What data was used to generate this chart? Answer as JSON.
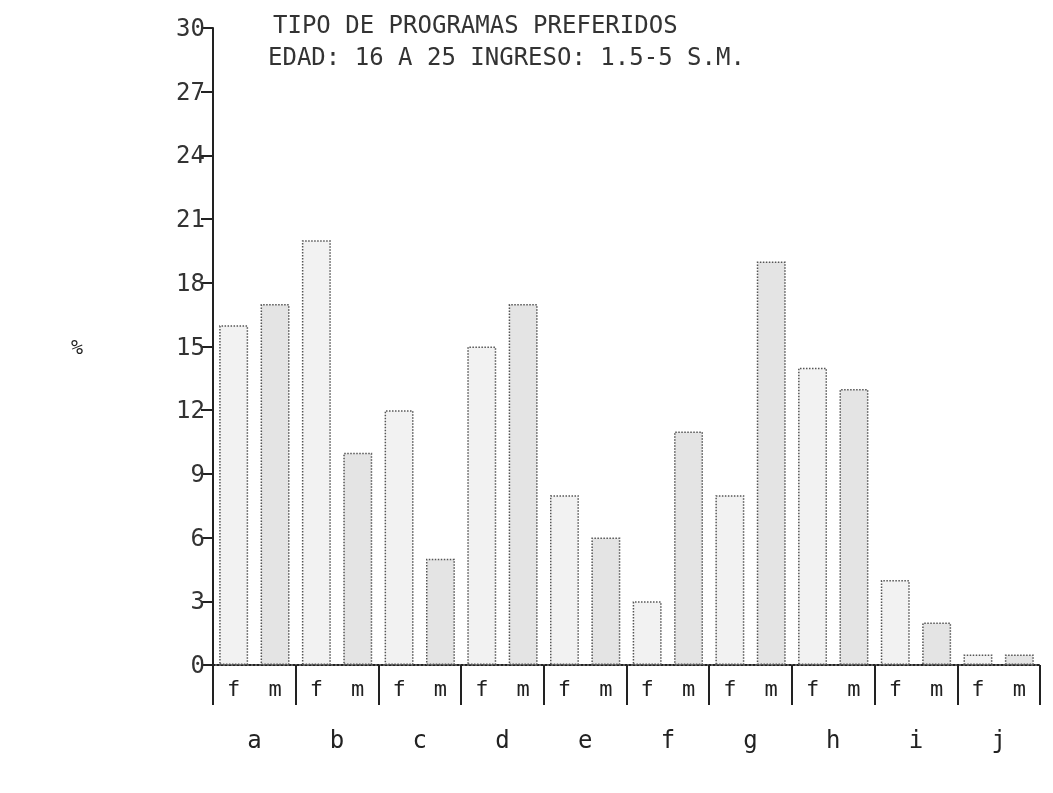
{
  "chart_data": {
    "type": "bar",
    "title": "TIPO DE PROGRAMAS PREFERIDOS",
    "subtitle": "EDAD: 16 A 25 INGRESO: 1.5-5 S.M.",
    "ylabel": "%",
    "categories": [
      "a",
      "b",
      "c",
      "d",
      "e",
      "f",
      "g",
      "h",
      "i",
      "j"
    ],
    "series": [
      {
        "name": "f",
        "color": "#f2f2f2",
        "values": [
          16,
          20,
          12,
          15,
          8,
          3,
          8,
          14,
          4,
          0.5
        ]
      },
      {
        "name": "m",
        "color": "#e4e4e4",
        "values": [
          17,
          10,
          5,
          17,
          6,
          11,
          19,
          13,
          2,
          0.5
        ]
      }
    ],
    "ylim": [
      0,
      30
    ],
    "yticks": [
      0,
      3,
      6,
      9,
      12,
      15,
      18,
      21,
      24,
      27,
      30
    ],
    "grid": false,
    "legend": false
  }
}
